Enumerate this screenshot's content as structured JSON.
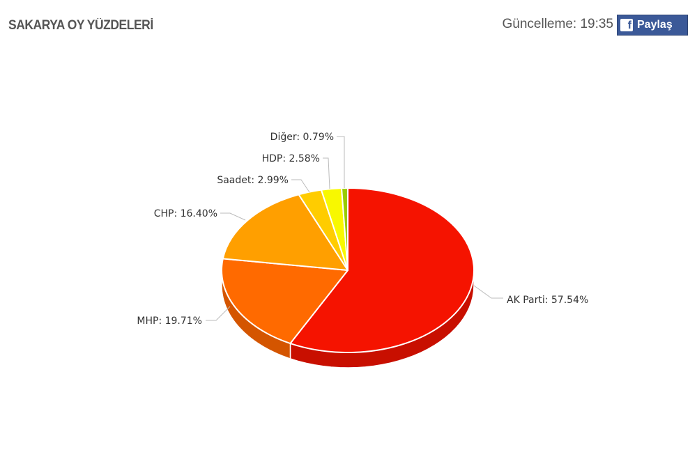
{
  "header": {
    "title": "SAKARYA OY YÜZDELERİ",
    "update_label": "Güncelleme: 19:35",
    "share_label": "Paylaş",
    "share_icon": "facebook-icon"
  },
  "chart_data": {
    "type": "pie",
    "title": "SAKARYA OY YÜZDELERİ",
    "three_d": true,
    "categories": [
      "AK Parti",
      "MHP",
      "CHP",
      "Saadet",
      "HDP",
      "Diğer"
    ],
    "values": [
      57.54,
      19.71,
      16.4,
      2.99,
      2.58,
      0.79
    ],
    "labels": [
      "AK Parti: 57.54%",
      "MHP: 19.71%",
      "CHP: 16.40%",
      "Saadet: 2.99%",
      "HDP: 2.58%",
      "Diğer: 0.79%"
    ],
    "colors": [
      "#f51300",
      "#ff6a00",
      "#ff9f00",
      "#ffcc00",
      "#f8f800",
      "#99cc00"
    ],
    "side_colors": [
      "#c80f00",
      "#d45500",
      "#d48400",
      "#d4aa00",
      "#cccc00",
      "#7aa300"
    ]
  }
}
